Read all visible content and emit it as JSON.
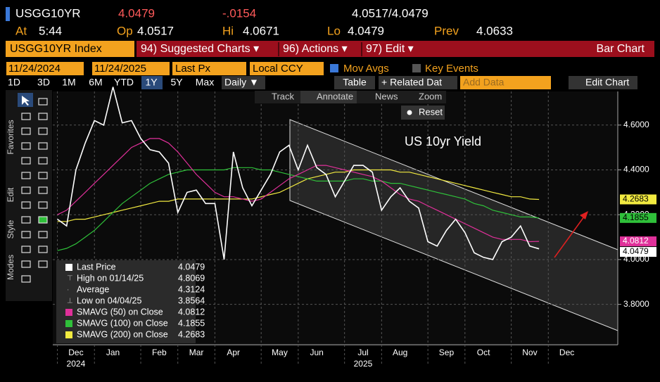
{
  "header": {
    "ticker": "USGG10YR",
    "last": "4.0479",
    "change": "-.0154",
    "bid_ask": "4.0517/4.0479",
    "fields": [
      {
        "label": "At",
        "value": "5:44"
      },
      {
        "label": "Op",
        "value": "4.0517"
      },
      {
        "label": "Hi",
        "value": "4.0671"
      },
      {
        "label": "Lo",
        "value": "4.0479"
      },
      {
        "label": "Prev",
        "value": "4.0633"
      }
    ]
  },
  "menu": {
    "security": "USGG10YR Index",
    "items": [
      "94) Suggested Charts ▾",
      "96) Actions ▾",
      "97) Edit ▾"
    ],
    "chart_kind": "Bar Chart"
  },
  "settings": {
    "start": "11/24/2024",
    "end": "11/24/2025",
    "field": "Last Px",
    "currency": "Local CCY",
    "mov_avgs": "Mov Avgs",
    "key_events": "Key Events"
  },
  "toolbar": {
    "periods": [
      "1D",
      "3D",
      "1M",
      "6M",
      "YTD",
      "1Y",
      "5Y",
      "Max"
    ],
    "frequency": "Daily ▼",
    "table": "Table",
    "related": "+ Related Dat",
    "add_data": "Add Data",
    "edit_chart": "Edit Chart"
  },
  "chart_tools": {
    "items": [
      "Track",
      "Annotate",
      "News",
      "Zoom"
    ],
    "reset": "Reset"
  },
  "side_tabs": [
    "Favorites",
    "Edit",
    "Style",
    "Modes"
  ],
  "chart_data": {
    "type": "line",
    "annotation": "US 10yr Yield",
    "categories": [
      null,
      null,
      "Dec",
      null,
      null,
      null,
      "Jan",
      null,
      null,
      null,
      null,
      "Feb",
      null,
      null,
      null,
      "Mar",
      null,
      null,
      null,
      "Apr",
      null,
      null,
      null,
      null,
      "May",
      null,
      null,
      null,
      "Jun",
      null,
      null,
      null,
      null,
      "Jul",
      null,
      null,
      null,
      "Aug",
      null,
      null,
      null,
      null,
      "Sep",
      null,
      null,
      null,
      "Oct",
      null,
      null,
      null,
      null,
      "Nov",
      null,
      null,
      null,
      "Dec",
      null,
      null,
      null,
      null,
      null
    ],
    "years": [
      {
        "index": 2,
        "label": "2024"
      },
      {
        "index": 33,
        "label": "2025"
      }
    ],
    "ylim": [
      3.62,
      4.75
    ],
    "yticks": [
      {
        "value": 3.8,
        "label": "3.8000"
      },
      {
        "value": 4.0,
        "label": "4.0000"
      },
      {
        "value": 4.2,
        "label": "4.2000"
      },
      {
        "value": 4.4,
        "label": "4.4000"
      },
      {
        "value": 4.6,
        "label": "4.6000"
      }
    ],
    "grid": true,
    "series": [
      {
        "name": "Last Price",
        "color": "#ffffff",
        "values": [
          4.18,
          4.15,
          4.4,
          4.52,
          4.62,
          4.6,
          4.77,
          4.61,
          4.62,
          4.54,
          4.49,
          4.48,
          4.43,
          4.21,
          4.3,
          4.31,
          4.25,
          4.25,
          4.0,
          4.48,
          4.32,
          4.24,
          4.31,
          4.38,
          4.48,
          4.51,
          4.4,
          4.51,
          4.41,
          4.38,
          4.28,
          4.35,
          4.42,
          4.42,
          4.39,
          4.22,
          4.28,
          4.32,
          4.26,
          4.23,
          4.08,
          4.06,
          4.13,
          4.18,
          4.12,
          4.03,
          4.01,
          4.0,
          4.08,
          4.1,
          4.15,
          4.06,
          4.0479,
          null,
          null,
          null,
          null,
          null,
          null,
          null,
          null
        ]
      },
      {
        "name": "SMAVG (50)  on Close",
        "color": "#e0309a",
        "values": [
          4.2,
          4.22,
          4.26,
          4.3,
          4.34,
          4.38,
          4.42,
          4.46,
          4.5,
          4.52,
          4.54,
          4.54,
          4.52,
          4.48,
          4.43,
          4.38,
          4.34,
          4.3,
          4.28,
          4.28,
          4.27,
          4.26,
          4.27,
          4.3,
          4.33,
          4.36,
          4.38,
          4.4,
          4.42,
          4.42,
          4.41,
          4.4,
          4.39,
          4.38,
          4.37,
          4.35,
          4.32,
          4.29,
          4.27,
          4.26,
          4.24,
          4.22,
          4.2,
          4.18,
          4.16,
          4.14,
          4.12,
          4.1,
          4.09,
          4.09,
          4.09,
          4.08,
          4.0812,
          null,
          null,
          null,
          null,
          null,
          null,
          null,
          null
        ]
      },
      {
        "name": "SMAVG (100)  on Close",
        "color": "#2fc03a",
        "values": [
          4.04,
          4.05,
          4.07,
          4.1,
          4.13,
          4.17,
          4.21,
          4.25,
          4.28,
          4.31,
          4.34,
          4.36,
          4.38,
          4.39,
          4.4,
          4.4,
          4.4,
          4.4,
          4.4,
          4.41,
          4.41,
          4.41,
          4.4,
          4.4,
          4.39,
          4.38,
          4.37,
          4.36,
          4.35,
          4.35,
          4.35,
          4.35,
          4.36,
          4.36,
          4.35,
          4.35,
          4.34,
          4.34,
          4.33,
          4.32,
          4.31,
          4.3,
          4.29,
          4.28,
          4.27,
          4.25,
          4.24,
          4.22,
          4.21,
          4.2,
          4.19,
          4.19,
          4.1855,
          null,
          null,
          null,
          null,
          null,
          null,
          null,
          null
        ]
      },
      {
        "name": "SMAVG (200)  on Close",
        "color": "#f2ea40",
        "values": [
          4.17,
          4.17,
          4.18,
          4.18,
          4.19,
          4.2,
          4.21,
          4.22,
          4.23,
          4.24,
          4.25,
          4.26,
          4.26,
          4.27,
          4.27,
          4.27,
          4.27,
          4.27,
          4.27,
          4.27,
          4.27,
          4.27,
          4.28,
          4.29,
          4.3,
          4.32,
          4.34,
          4.36,
          4.37,
          4.38,
          4.39,
          4.39,
          4.4,
          4.4,
          4.4,
          4.4,
          4.4,
          4.39,
          4.39,
          4.38,
          4.37,
          4.36,
          4.35,
          4.34,
          4.33,
          4.32,
          4.31,
          4.3,
          4.29,
          4.28,
          4.28,
          4.27,
          4.2683,
          null,
          null,
          null,
          null,
          null,
          null,
          null,
          null
        ]
      }
    ],
    "stats": [
      {
        "label": "High on 01/14/25",
        "value": 4.8069
      },
      {
        "label": "Average",
        "value": 4.3124
      },
      {
        "label": "Low on 04/04/25",
        "value": 3.8564
      }
    ]
  }
}
